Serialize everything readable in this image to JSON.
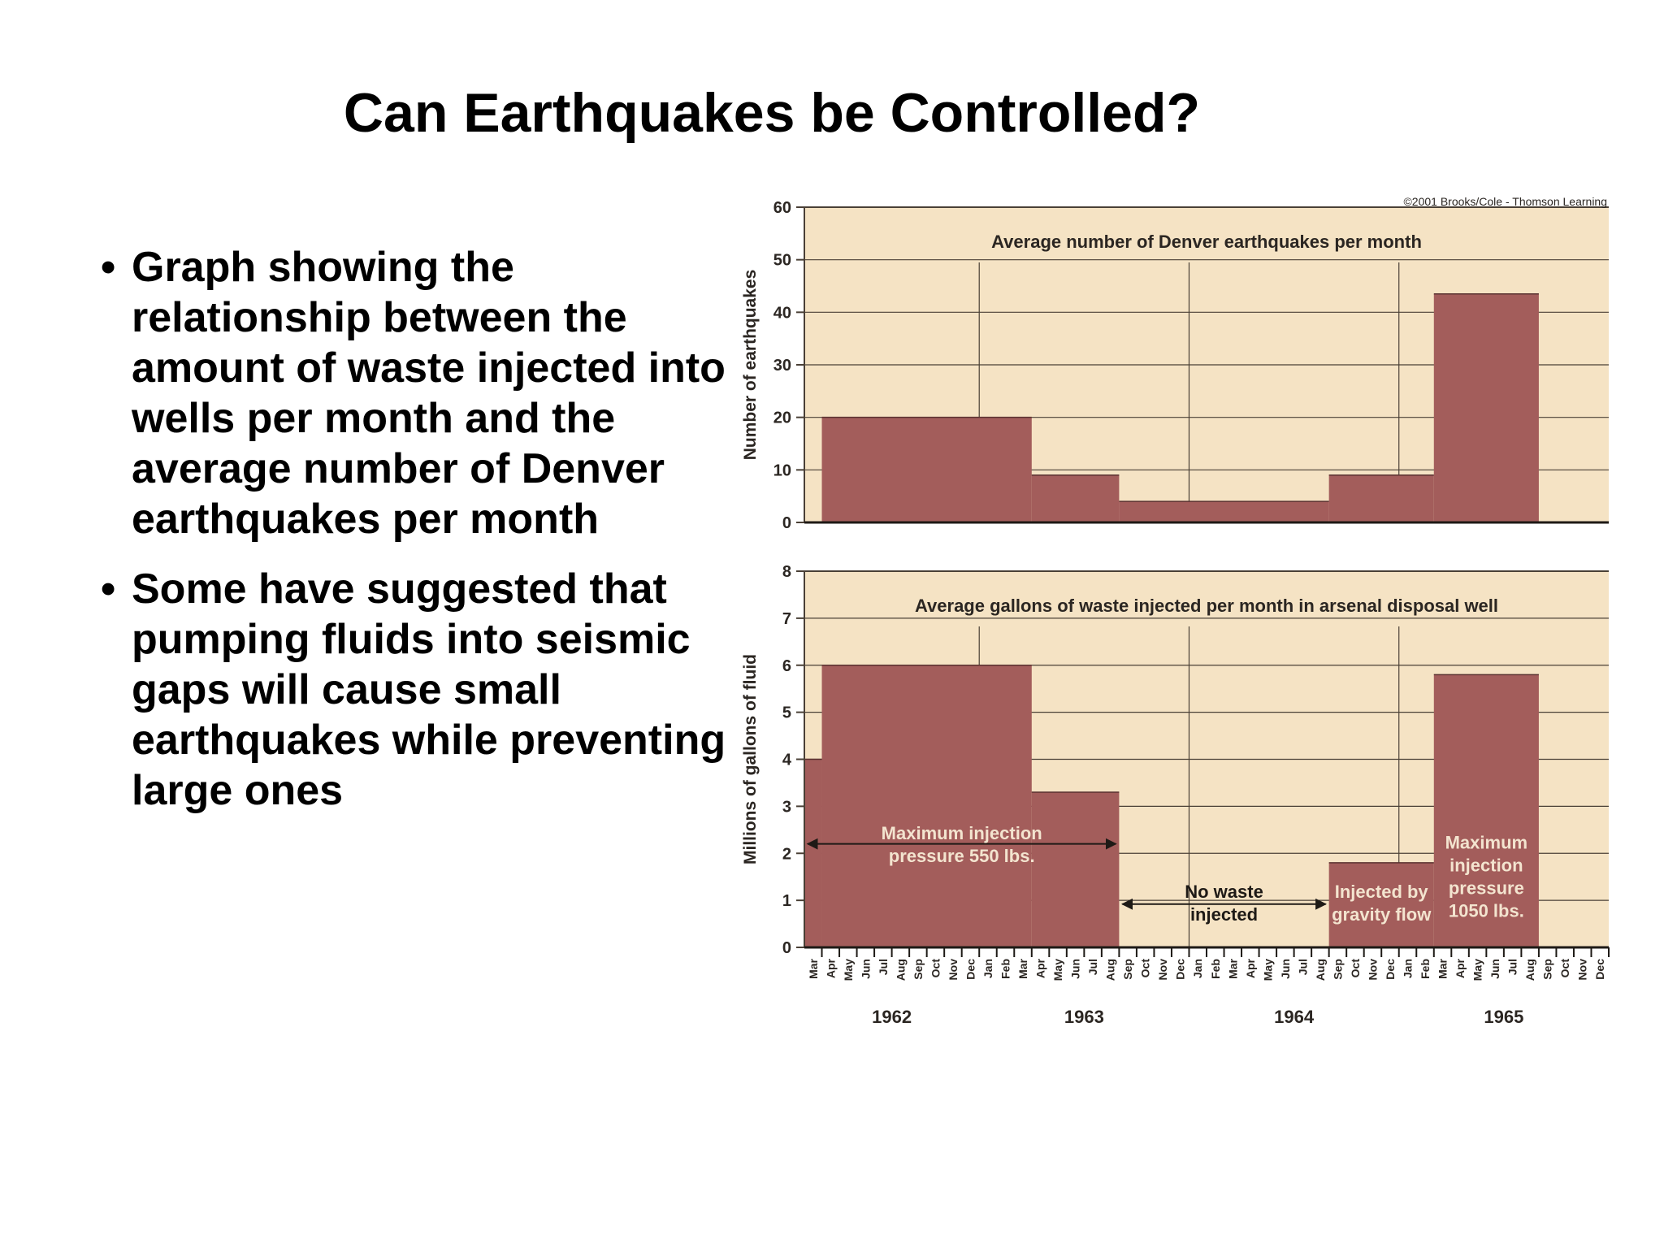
{
  "slide": {
    "title": "Can Earthquakes be Controlled?",
    "bullets": [
      "Graph showing the relationship between the amount of waste injected into wells per month and the average number of Denver earthquakes per month",
      "Some have suggested that pumping fluids into seismic gaps will cause small earthquakes while preventing large ones"
    ],
    "bullet_symbol": "•"
  },
  "colors": {
    "panel_bg": "#f5e3c4",
    "bar_fill": "#a35d5b",
    "grid": "#4a4036",
    "text": "#2b2622",
    "annotation_text": "#f3e4cf"
  },
  "chart_data": [
    {
      "type": "area",
      "title": "Average number of Denver earthquakes per month",
      "ylabel": "Number of earthquakes",
      "ylim": [
        0,
        60
      ],
      "yticks": [
        0,
        10,
        20,
        30,
        40,
        50,
        60
      ],
      "copyright": "©2001 Brooks/Cole - Thomson Learning",
      "steps": [
        {
          "from": "1962-04",
          "to": "1963-04",
          "value": 20
        },
        {
          "from": "1963-04",
          "to": "1963-09",
          "value": 9
        },
        {
          "from": "1963-09",
          "to": "1964-09",
          "value": 4
        },
        {
          "from": "1964-09",
          "to": "1965-03",
          "value": 9
        },
        {
          "from": "1965-03",
          "to": "1965-09",
          "value": 43.5
        }
      ]
    },
    {
      "type": "area",
      "title": "Average gallons of waste injected per month in arsenal disposal well",
      "ylabel": "Millions of gallons of fluid",
      "ylim": [
        0,
        8
      ],
      "yticks": [
        0,
        1,
        2,
        3,
        4,
        5,
        6,
        7,
        8
      ],
      "steps": [
        {
          "from": "1962-03",
          "to": "1962-04",
          "value": 4
        },
        {
          "from": "1962-04",
          "to": "1963-04",
          "value": 6
        },
        {
          "from": "1963-04",
          "to": "1963-09",
          "value": 3.3
        },
        {
          "from": "1963-09",
          "to": "1964-09",
          "value": 0
        },
        {
          "from": "1964-09",
          "to": "1965-03",
          "value": 1.8
        },
        {
          "from": "1965-03",
          "to": "1965-09",
          "value": 5.8
        }
      ],
      "annotations": [
        {
          "text": [
            "Maximum injection",
            "pressure 550 lbs."
          ]
        },
        {
          "text": [
            "No waste",
            "injected"
          ]
        },
        {
          "text": [
            "Injected by",
            "gravity flow"
          ]
        },
        {
          "text": [
            "Maximum",
            "injection",
            "pressure",
            "1050 lbs."
          ]
        }
      ]
    }
  ],
  "x_axis": {
    "months": [
      "Mar",
      "Apr",
      "May",
      "Jun",
      "Jul",
      "Aug",
      "Sep",
      "Oct",
      "Nov",
      "Dec",
      "Jan",
      "Feb",
      "Mar",
      "Apr",
      "May",
      "Jun",
      "Jul",
      "Aug",
      "Sep",
      "Oct",
      "Nov",
      "Dec",
      "Jan",
      "Feb",
      "Mar",
      "Apr",
      "May",
      "Jun",
      "Jul",
      "Aug",
      "Sep",
      "Oct",
      "Nov",
      "Dec",
      "Jan",
      "Feb",
      "Mar",
      "Apr",
      "May",
      "Jun",
      "Jul",
      "Aug",
      "Sep",
      "Oct",
      "Nov",
      "Dec"
    ],
    "years": [
      "1962",
      "1963",
      "1964",
      "1965"
    ],
    "start": "1962-03"
  }
}
